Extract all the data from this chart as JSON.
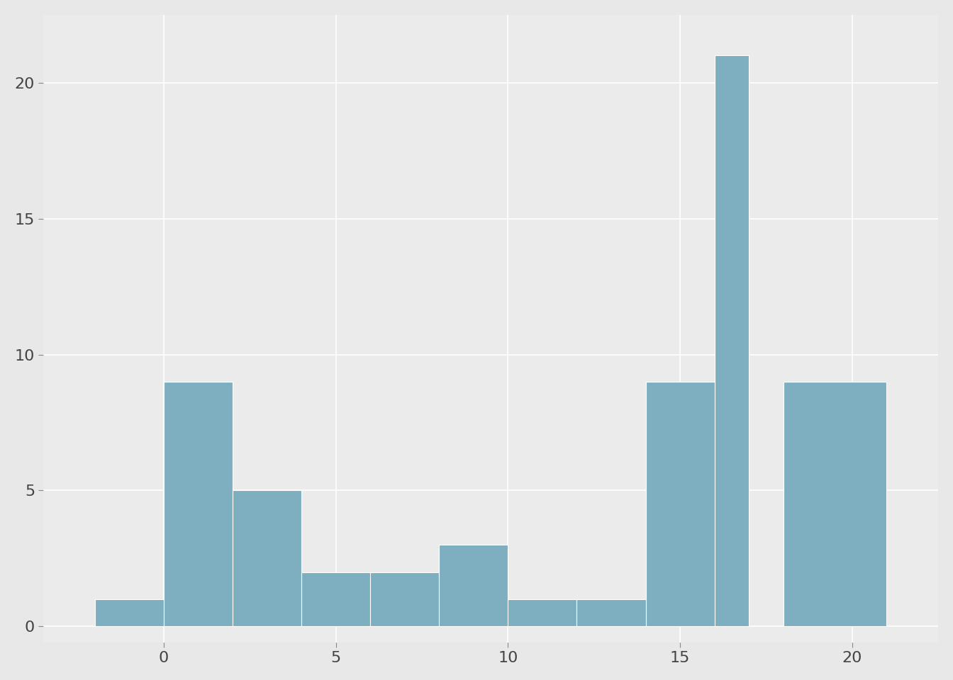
{
  "bin_left": [
    -2,
    0,
    2,
    4,
    6,
    8,
    10,
    12,
    14,
    16,
    18
  ],
  "bin_right": [
    0,
    2,
    4,
    6,
    8,
    10,
    12,
    14,
    16,
    17,
    21
  ],
  "bin_heights": [
    1,
    9,
    5,
    2,
    2,
    3,
    1,
    1,
    9,
    21,
    9
  ],
  "bar_color": "#7dafc0",
  "bar_edge_color": "white",
  "bar_linewidth": 0.8,
  "background_color": "#e8e8e8",
  "panel_color": "#ebebeb",
  "grid_color": "white",
  "xlim": [
    -3.5,
    22.5
  ],
  "ylim": [
    -0.6,
    22.5
  ],
  "xticks": [
    0,
    5,
    10,
    15,
    20
  ],
  "yticks": [
    0,
    5,
    10,
    15,
    20
  ],
  "tick_fontsize": 16,
  "figsize": [
    13.44,
    9.6
  ],
  "dpi": 100
}
